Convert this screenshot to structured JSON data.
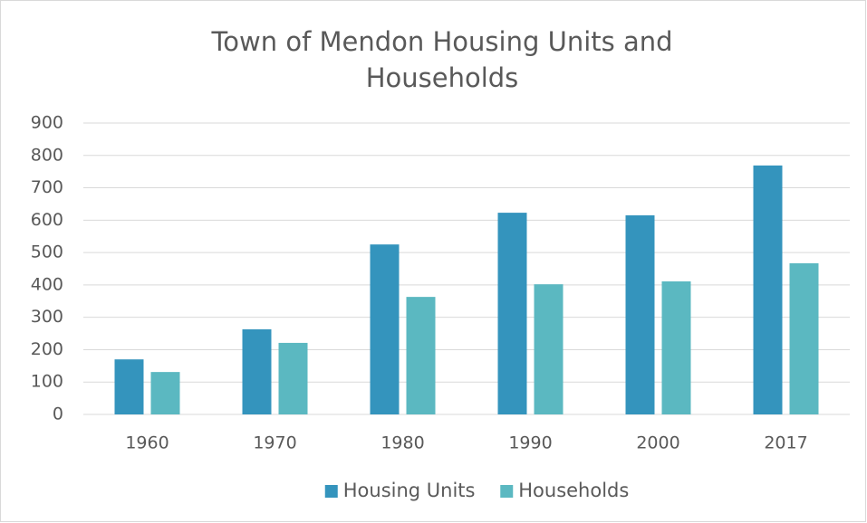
{
  "chart_data": {
    "type": "bar",
    "title": "Town of Mendon Housing Units and Households",
    "categories": [
      "1960",
      "1970",
      "1980",
      "1990",
      "2000",
      "2017"
    ],
    "series": [
      {
        "name": "Housing Units",
        "color": "#3494bd",
        "values": [
          170,
          263,
          525,
          623,
          615,
          769
        ]
      },
      {
        "name": "Households",
        "color": "#5bb8c1",
        "values": [
          131,
          221,
          363,
          402,
          411,
          467
        ]
      }
    ],
    "ylim": [
      0,
      900
    ],
    "yticks": [
      0,
      100,
      200,
      300,
      400,
      500,
      600,
      700,
      800,
      900
    ],
    "grid": true,
    "legend": "bottom"
  }
}
